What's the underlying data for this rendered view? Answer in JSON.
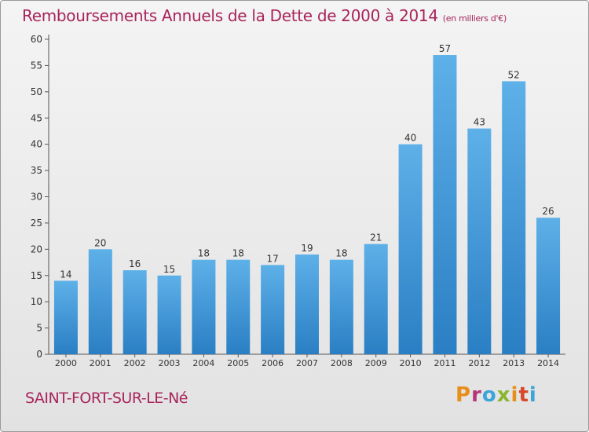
{
  "header": {
    "title": "Remboursements Annuels de la Dette de 2000 à 2014",
    "unit_note": "(en milliers d'€)"
  },
  "footer": {
    "commune": "SAINT-FORT-SUR-LE-Né",
    "logo_text": "Proxiti",
    "logo_colors": [
      "#e88e1a",
      "#b6357a",
      "#3aa5d8",
      "#8ab52d",
      "#e88e1a",
      "#d9462b",
      "#3aa5d8"
    ]
  },
  "colors": {
    "accent": "#a8245a",
    "bar_top": "#5eb0e8",
    "bar_bottom": "#2a7fc4"
  },
  "chart_data": {
    "type": "bar",
    "categories": [
      "2000",
      "2001",
      "2002",
      "2003",
      "2004",
      "2005",
      "2006",
      "2007",
      "2008",
      "2009",
      "2010",
      "2011",
      "2012",
      "2013",
      "2014"
    ],
    "values": [
      14,
      20,
      16,
      15,
      18,
      18,
      17,
      19,
      18,
      21,
      40,
      57,
      43,
      52,
      26
    ],
    "ylim": [
      0,
      60
    ],
    "yticks": [
      0,
      5,
      10,
      15,
      20,
      25,
      30,
      35,
      40,
      45,
      50,
      55,
      60
    ],
    "grid": false,
    "data_labels": true
  }
}
